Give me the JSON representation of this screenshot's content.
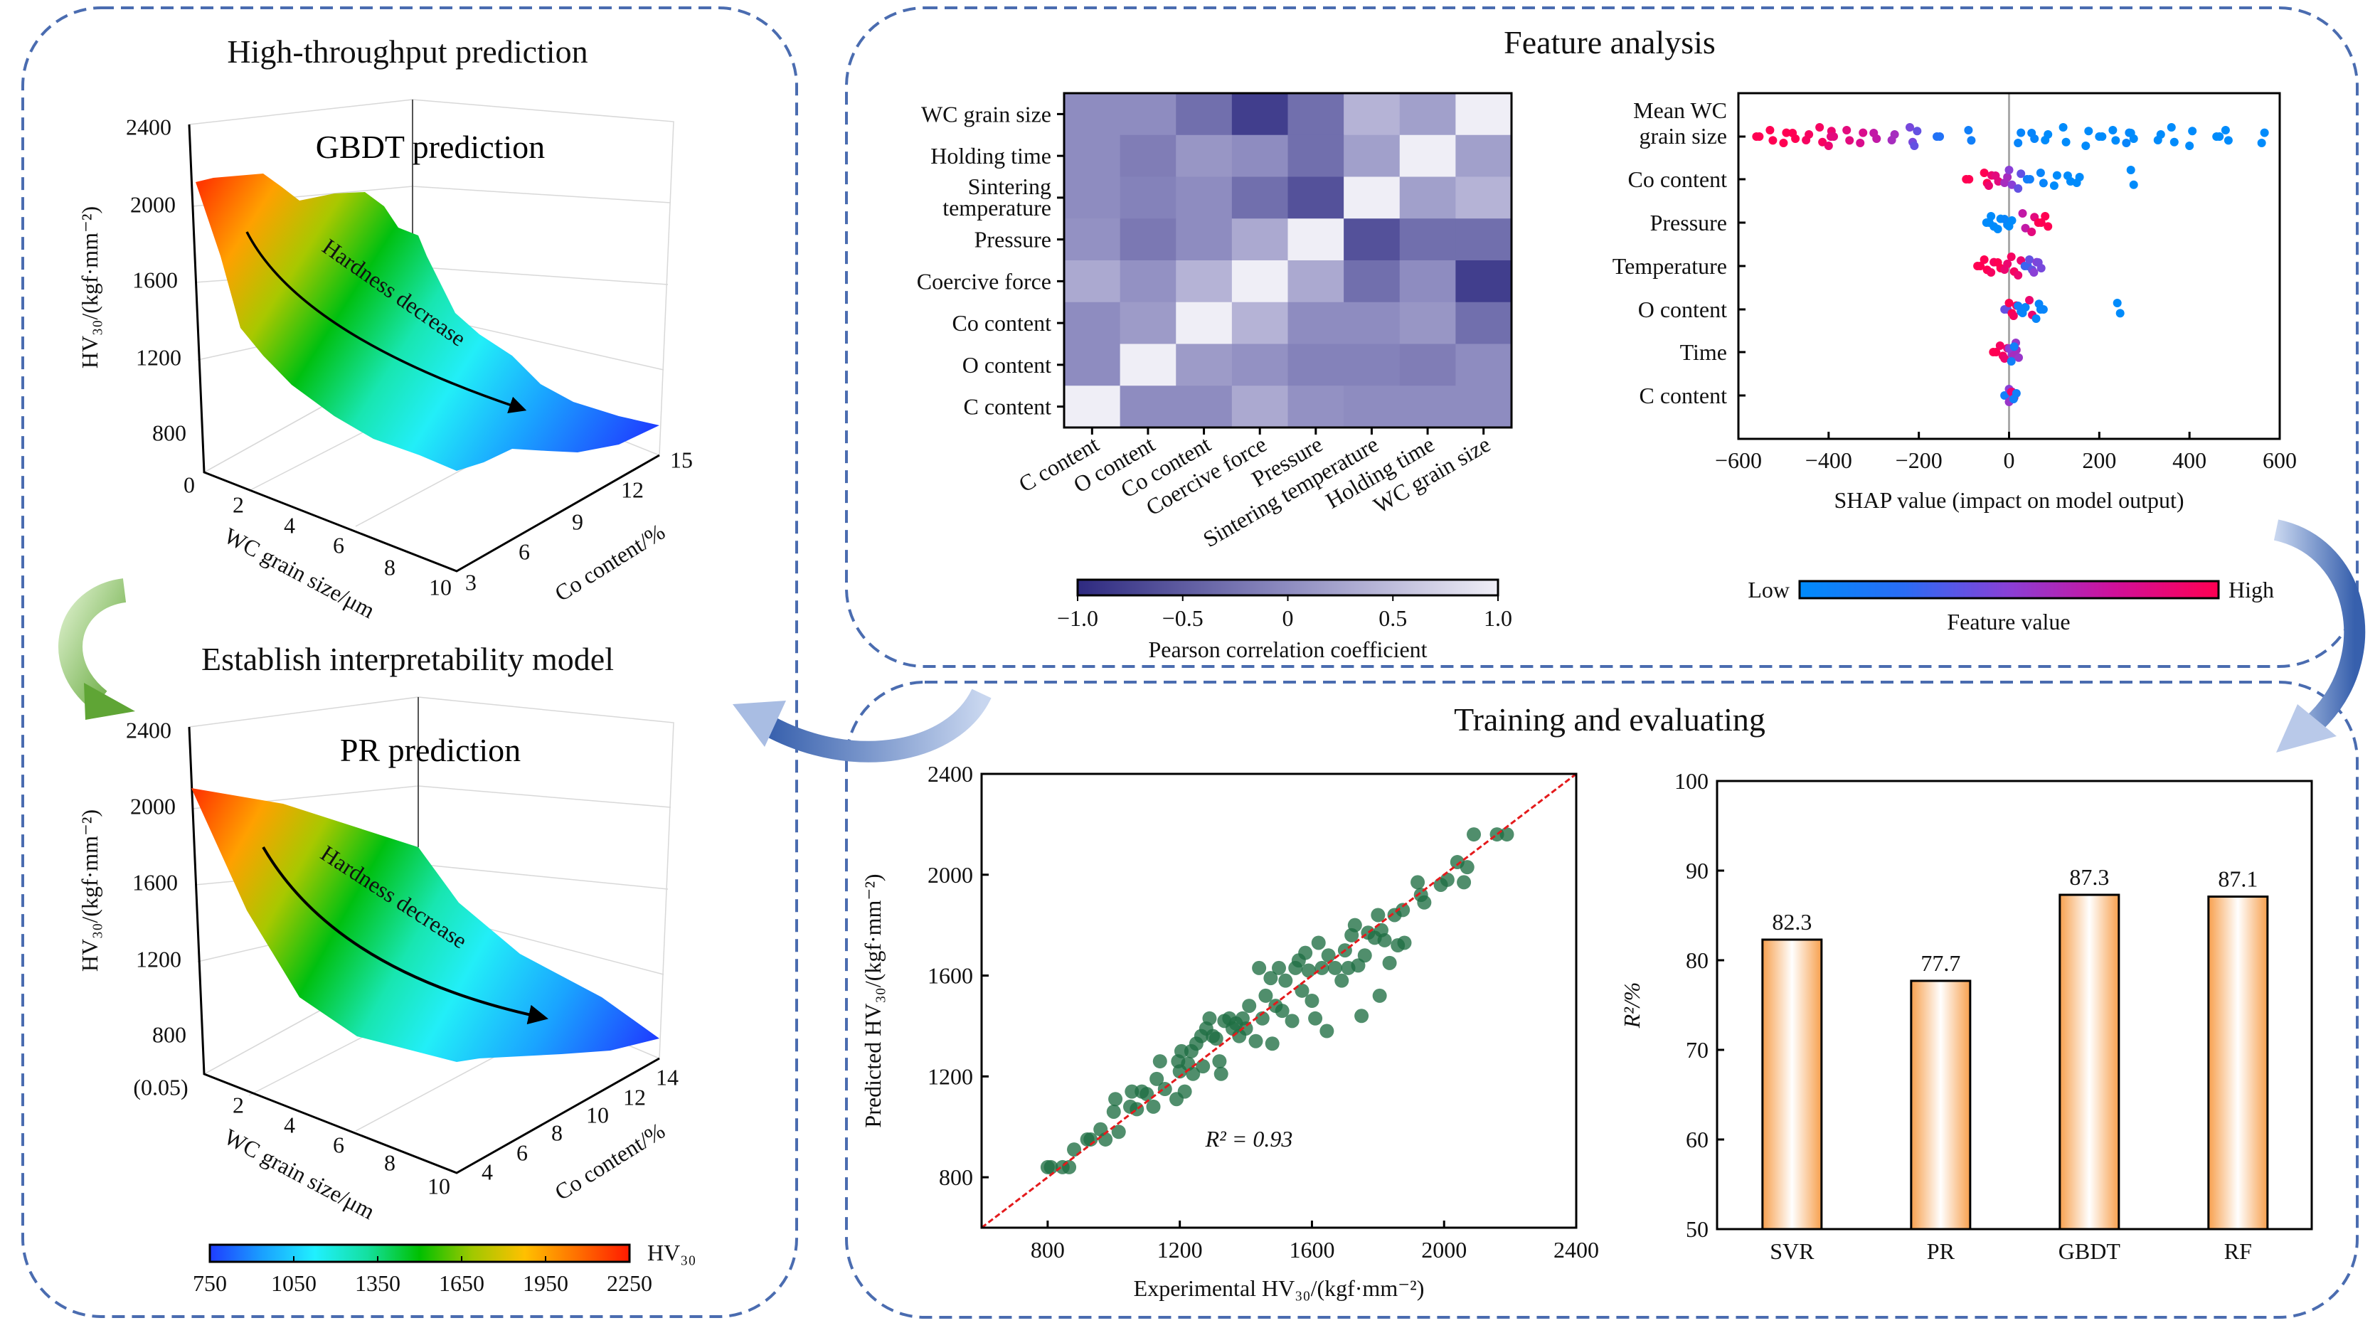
{
  "panels": {
    "high_throughput": {
      "title": "High-throughput prediction"
    },
    "interpretability": {
      "title": "Establish interpretability model"
    },
    "feature_analysis": {
      "title": "Feature analysis"
    },
    "training": {
      "title": "Training and evaluating"
    }
  },
  "surface_gbdt": {
    "title": "GBDT prediction",
    "annotation": "Hardness decrease",
    "z_label": "HV₃₀/(kgf·mm⁻²)",
    "z_ticks": [
      "2400",
      "2000",
      "1600",
      "1200",
      "800",
      "0"
    ],
    "x_label": "WC grain size/μm",
    "x_ticks": [
      "2",
      "4",
      "6",
      "8",
      "10"
    ],
    "y_label": "Co content/%",
    "y_ticks": [
      "3",
      "6",
      "9",
      "12",
      "15"
    ]
  },
  "surface_pr": {
    "title": "PR prediction",
    "annotation": "Hardness decrease",
    "z_label": "HV₃₀/(kgf·mm⁻²)",
    "z_ticks": [
      "2400",
      "2000",
      "1600",
      "1200",
      "800",
      "(0.05)"
    ],
    "x_label": "WC grain size/μm",
    "x_ticks": [
      "2",
      "4",
      "6",
      "8",
      "10"
    ],
    "y_label": "Co content/%",
    "y_ticks": [
      "4",
      "6",
      "8",
      "10",
      "12",
      "14"
    ]
  },
  "hv_colorbar": {
    "label": "HV₃₀",
    "ticks": [
      "750",
      "1050",
      "1350",
      "1650",
      "1950",
      "2250"
    ],
    "range": [
      750,
      2250
    ],
    "colors": [
      "#1e3cff",
      "#1aa0ff",
      "#20f0ff",
      "#14e0a0",
      "#00c000",
      "#a0c800",
      "#ffc000",
      "#ff7000",
      "#ff1a00"
    ]
  },
  "chart_data": [
    {
      "type": "heatmap",
      "row_labels": [
        "WC grain size",
        "Holding time",
        "Sintering temperature",
        "Pressure",
        "Coercive force",
        "Co content",
        "O content",
        "C content"
      ],
      "col_labels": [
        "C content",
        "O content",
        "Co content",
        "Coercive force",
        "Pressure",
        "Sintering temperature",
        "Holding time",
        "WC grain size"
      ],
      "values": [
        [
          0.0,
          0.0,
          -0.3,
          -0.8,
          -0.3,
          0.4,
          0.2,
          1.0
        ],
        [
          0.0,
          -0.15,
          0.1,
          0.0,
          -0.3,
          0.2,
          1.0,
          0.2
        ],
        [
          0.0,
          -0.1,
          0.0,
          -0.3,
          -0.6,
          1.0,
          0.2,
          0.4
        ],
        [
          0.05,
          -0.2,
          0.0,
          0.3,
          1.0,
          -0.6,
          -0.3,
          -0.3
        ],
        [
          0.3,
          0.05,
          0.4,
          1.0,
          0.3,
          -0.3,
          0.0,
          -0.8
        ],
        [
          0.0,
          0.15,
          1.0,
          0.4,
          0.0,
          0.0,
          0.1,
          -0.3
        ],
        [
          0.0,
          1.0,
          0.15,
          0.05,
          -0.1,
          -0.1,
          -0.15,
          0.0
        ],
        [
          1.0,
          0.0,
          0.0,
          0.3,
          0.05,
          0.0,
          0.0,
          0.0
        ]
      ],
      "colorbar": {
        "label": "Pearson correlation coefficient",
        "ticks": [
          "−1.0",
          "−0.5",
          "0",
          "0.5",
          "1.0"
        ],
        "range": [
          -1,
          1
        ],
        "colors": [
          "#2e2a80",
          "#8e8cc0",
          "#efeef6"
        ]
      }
    },
    {
      "type": "scatter",
      "subtype": "shap-beeswarm",
      "features": [
        {
          "label": [
            "Mean WC",
            "grain size"
          ],
          "points": [
            [
              -560,
              1
            ],
            [
              -530,
              1
            ],
            [
              -500,
              1
            ],
            [
              -480,
              1
            ],
            [
              -450,
              0.95
            ],
            [
              -420,
              0.95
            ],
            [
              -400,
              0.9
            ],
            [
              -395,
              0.85
            ],
            [
              -360,
              0.85
            ],
            [
              -330,
              0.8
            ],
            [
              -300,
              0.7
            ],
            [
              -260,
              0.6
            ],
            [
              -220,
              0.45
            ],
            [
              -210,
              0.4
            ],
            [
              -160,
              0.2
            ],
            [
              -90,
              0.1
            ],
            [
              20,
              0.05
            ],
            [
              50,
              0.05
            ],
            [
              80,
              0
            ],
            [
              120,
              0
            ],
            [
              170,
              0
            ],
            [
              200,
              0
            ],
            [
              230,
              0
            ],
            [
              260,
              0.05
            ],
            [
              270,
              0
            ],
            [
              330,
              0
            ],
            [
              360,
              0
            ],
            [
              400,
              0
            ],
            [
              460,
              0
            ],
            [
              480,
              0
            ],
            [
              560,
              0
            ]
          ]
        },
        {
          "label": [
            "Co content"
          ],
          "points": [
            [
              -95,
              1
            ],
            [
              -55,
              1
            ],
            [
              -45,
              0.9
            ],
            [
              -30,
              0.85
            ],
            [
              -10,
              0.6
            ],
            [
              0,
              0.5
            ],
            [
              20,
              0.4
            ],
            [
              40,
              0.1
            ],
            [
              70,
              0.05
            ],
            [
              100,
              0
            ],
            [
              130,
              0
            ],
            [
              150,
              0
            ],
            [
              270,
              0
            ]
          ]
        },
        {
          "label": [
            "Pressure"
          ],
          "points": [
            [
              -50,
              0
            ],
            [
              -40,
              0
            ],
            [
              -25,
              0
            ],
            [
              -10,
              0.05
            ],
            [
              0,
              0
            ],
            [
              30,
              0.7
            ],
            [
              50,
              0.85
            ],
            [
              65,
              1
            ],
            [
              80,
              1
            ]
          ]
        },
        {
          "label": [
            "Temperature"
          ],
          "points": [
            [
              -70,
              1
            ],
            [
              -55,
              1
            ],
            [
              -40,
              0.95
            ],
            [
              -25,
              1
            ],
            [
              -10,
              0.9
            ],
            [
              5,
              0.95
            ],
            [
              20,
              0.9
            ],
            [
              35,
              0.3
            ],
            [
              45,
              0.4
            ],
            [
              55,
              0.5
            ],
            [
              65,
              0.45
            ]
          ]
        },
        {
          "label": [
            "O content"
          ],
          "points": [
            [
              -10,
              0.4
            ],
            [
              0,
              1
            ],
            [
              10,
              0.95
            ],
            [
              20,
              0.1
            ],
            [
              30,
              0.05
            ],
            [
              45,
              0.9
            ],
            [
              60,
              0.05
            ],
            [
              70,
              0.05
            ],
            [
              240,
              0
            ]
          ]
        },
        {
          "label": [
            "Time"
          ],
          "points": [
            [
              -35,
              1
            ],
            [
              -20,
              0.95
            ],
            [
              -10,
              0.9
            ],
            [
              0,
              0.5
            ],
            [
              10,
              0.6
            ],
            [
              15,
              0.55
            ],
            [
              5,
              0.1
            ]
          ]
        },
        {
          "label": [
            "C content"
          ],
          "points": [
            [
              -10,
              0.1
            ],
            [
              0,
              0.5
            ],
            [
              0,
              0.55
            ],
            [
              5,
              0.9
            ],
            [
              10,
              0.1
            ]
          ]
        }
      ],
      "xlim": [
        -600,
        600
      ],
      "x_ticks": [
        "−600",
        "−400",
        "−200",
        "0",
        "200",
        "400",
        "600"
      ],
      "xlabel": "SHAP value (impact on model output)",
      "colorbar": {
        "label": "Feature value",
        "low": "Low",
        "high": "High",
        "colors": [
          "#008bfb",
          "#2a6cf5",
          "#8a3fd6",
          "#d0109a",
          "#ff0052"
        ]
      }
    },
    {
      "type": "scatter",
      "xlabel": "Experimental HV₃₀/(kgf·mm⁻²)",
      "ylabel": "Predicted HV₃₀/(kgf·mm⁻²)",
      "xlim": [
        600,
        2400
      ],
      "ylim": [
        600,
        2400
      ],
      "x_ticks": [
        800,
        1200,
        1600,
        2000,
        2400
      ],
      "y_ticks": [
        800,
        1200,
        1600,
        2000,
        2400
      ],
      "annotation": "R² = 0.93",
      "reference_line": "y = x",
      "point_color": "#1f6e43",
      "line_color": "#e41a1c",
      "points": [
        [
          800,
          840
        ],
        [
          810,
          840
        ],
        [
          845,
          840
        ],
        [
          865,
          840
        ],
        [
          880,
          910
        ],
        [
          920,
          950
        ],
        [
          930,
          950
        ],
        [
          960,
          990
        ],
        [
          975,
          950
        ],
        [
          1000,
          1060
        ],
        [
          1005,
          1110
        ],
        [
          1015,
          980
        ],
        [
          1050,
          1080
        ],
        [
          1055,
          1140
        ],
        [
          1070,
          1070
        ],
        [
          1085,
          1140
        ],
        [
          1100,
          1130
        ],
        [
          1120,
          1080
        ],
        [
          1130,
          1190
        ],
        [
          1140,
          1260
        ],
        [
          1155,
          1150
        ],
        [
          1190,
          1110
        ],
        [
          1195,
          1260
        ],
        [
          1200,
          1220
        ],
        [
          1205,
          1300
        ],
        [
          1215,
          1140
        ],
        [
          1225,
          1250
        ],
        [
          1235,
          1300
        ],
        [
          1240,
          1210
        ],
        [
          1250,
          1330
        ],
        [
          1265,
          1360
        ],
        [
          1270,
          1240
        ],
        [
          1280,
          1390
        ],
        [
          1290,
          1430
        ],
        [
          1300,
          1360
        ],
        [
          1310,
          1350
        ],
        [
          1320,
          1260
        ],
        [
          1325,
          1210
        ],
        [
          1335,
          1420
        ],
        [
          1350,
          1430
        ],
        [
          1360,
          1390
        ],
        [
          1370,
          1410
        ],
        [
          1380,
          1360
        ],
        [
          1390,
          1430
        ],
        [
          1400,
          1390
        ],
        [
          1410,
          1480
        ],
        [
          1430,
          1340
        ],
        [
          1440,
          1630
        ],
        [
          1450,
          1430
        ],
        [
          1460,
          1520
        ],
        [
          1475,
          1590
        ],
        [
          1480,
          1330
        ],
        [
          1490,
          1480
        ],
        [
          1500,
          1630
        ],
        [
          1510,
          1460
        ],
        [
          1520,
          1580
        ],
        [
          1540,
          1420
        ],
        [
          1550,
          1630
        ],
        [
          1560,
          1660
        ],
        [
          1570,
          1540
        ],
        [
          1580,
          1690
        ],
        [
          1590,
          1620
        ],
        [
          1600,
          1500
        ],
        [
          1610,
          1430
        ],
        [
          1620,
          1730
        ],
        [
          1630,
          1630
        ],
        [
          1645,
          1380
        ],
        [
          1650,
          1680
        ],
        [
          1670,
          1630
        ],
        [
          1690,
          1580
        ],
        [
          1700,
          1700
        ],
        [
          1710,
          1630
        ],
        [
          1720,
          1760
        ],
        [
          1730,
          1800
        ],
        [
          1740,
          1640
        ],
        [
          1750,
          1440
        ],
        [
          1760,
          1680
        ],
        [
          1770,
          1770
        ],
        [
          1790,
          1750
        ],
        [
          1800,
          1840
        ],
        [
          1805,
          1520
        ],
        [
          1810,
          1780
        ],
        [
          1820,
          1740
        ],
        [
          1835,
          1650
        ],
        [
          1850,
          1840
        ],
        [
          1860,
          1720
        ],
        [
          1875,
          1860
        ],
        [
          1880,
          1730
        ],
        [
          1920,
          1970
        ],
        [
          1930,
          1920
        ],
        [
          1940,
          1890
        ],
        [
          1990,
          1960
        ],
        [
          2010,
          1980
        ],
        [
          2040,
          2050
        ],
        [
          2060,
          1970
        ],
        [
          2070,
          2030
        ],
        [
          2090,
          2160
        ],
        [
          2160,
          2160
        ],
        [
          2190,
          2160
        ]
      ]
    },
    {
      "type": "bar",
      "categories": [
        "SVR",
        "PR",
        "GBDT",
        "RF"
      ],
      "values": [
        82.3,
        77.7,
        87.3,
        87.1
      ],
      "data_labels": [
        "82.3",
        "77.7",
        "87.3",
        "87.1"
      ],
      "ylabel": "R²/%",
      "ylim": [
        50,
        100
      ],
      "y_ticks": [
        50,
        60,
        70,
        80,
        90,
        100
      ],
      "bar_color": "#f7a04e"
    }
  ]
}
